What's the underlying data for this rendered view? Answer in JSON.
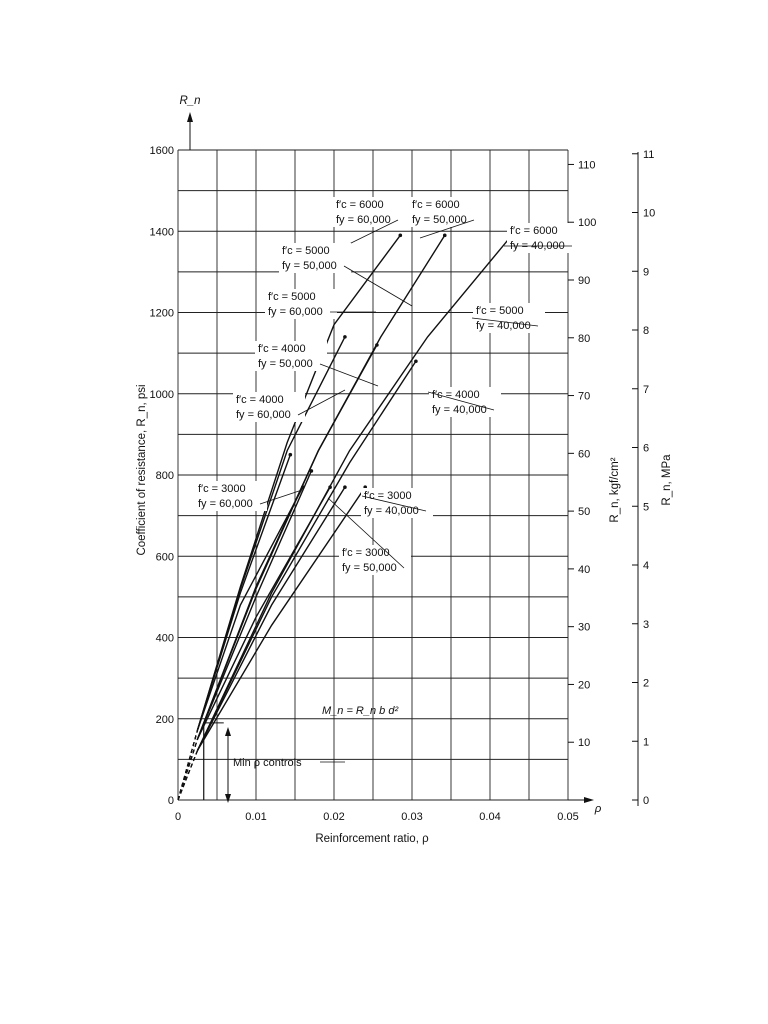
{
  "chart_data": {
    "type": "line",
    "title": "",
    "xlabel": "Reinforcement ratio, ρ",
    "x_axis_symbol": "ρ",
    "ylabel_left": "Coefficient of resistance, R_n, psi",
    "ylabel_left_symbol": "R_n",
    "ylabel_right_1": "R_n, kgf/cm²",
    "ylabel_right_2": "R_n, MPa",
    "xlim": [
      0,
      0.05
    ],
    "ylim": [
      0,
      1600
    ],
    "right1_lim": [
      0,
      112.5
    ],
    "right2_lim": [
      0,
      11.03
    ],
    "x_ticks": [
      "0",
      "0.01",
      "0.02",
      "0.03",
      "0.04",
      "0.05"
    ],
    "x_tick_values": [
      0,
      0.01,
      0.02,
      0.03,
      0.04,
      0.05
    ],
    "y_ticks": [
      "0",
      "200",
      "400",
      "600",
      "800",
      "1000",
      "1200",
      "1400",
      "1600"
    ],
    "y_tick_values": [
      0,
      200,
      400,
      600,
      800,
      1000,
      1200,
      1400,
      1600
    ],
    "right1_ticks": [
      "10",
      "20",
      "30",
      "40",
      "50",
      "60",
      "70",
      "80",
      "90",
      "100",
      "110"
    ],
    "right1_tick_values": [
      10,
      20,
      30,
      40,
      50,
      60,
      70,
      80,
      90,
      100,
      110
    ],
    "right2_ticks": [
      "0",
      "1",
      "2",
      "3",
      "4",
      "5",
      "6",
      "7",
      "8",
      "9",
      "10",
      "11"
    ],
    "right2_tick_values": [
      0,
      1,
      2,
      3,
      4,
      5,
      6,
      7,
      8,
      9,
      10,
      11
    ],
    "grid": true,
    "series": [
      {
        "fc": "6000",
        "fy": "60,000",
        "x": [
          0.0025,
          0.008,
          0.014,
          0.02,
          0.0285
        ],
        "y": [
          172,
          525,
          880,
          1170,
          1390
        ]
      },
      {
        "fc": "6000",
        "fy": "50,000",
        "x": [
          0.0025,
          0.01,
          0.018,
          0.026,
          0.0342
        ],
        "y": [
          150,
          525,
          860,
          1140,
          1390
        ]
      },
      {
        "fc": "6000",
        "fy": "40,000",
        "x": [
          0.0025,
          0.012,
          0.022,
          0.032,
          0.0428
        ],
        "y": [
          122,
          510,
          860,
          1140,
          1390
        ]
      },
      {
        "fc": "5000",
        "fy": "60,000",
        "x": [
          0.0025,
          0.008,
          0.014,
          0.0214
        ],
        "y": [
          172,
          520,
          860,
          1140
        ]
      },
      {
        "fc": "5000",
        "fy": "50,000",
        "x": [
          0.0025,
          0.01,
          0.018,
          0.0255
        ],
        "y": [
          150,
          520,
          860,
          1120
        ]
      },
      {
        "fc": "5000",
        "fy": "40,000",
        "x": [
          0.0025,
          0.012,
          0.022,
          0.0305
        ],
        "y": [
          122,
          500,
          830,
          1080
        ]
      },
      {
        "fc": "4000",
        "fy": "60,000",
        "x": [
          0.0025,
          0.008,
          0.0144
        ],
        "y": [
          172,
          510,
          850
        ]
      },
      {
        "fc": "4000",
        "fy": "50,000",
        "x": [
          0.0025,
          0.01,
          0.0171
        ],
        "y": [
          150,
          500,
          810
        ]
      },
      {
        "fc": "4000",
        "fy": "40,000",
        "x": [
          0.0025,
          0.012,
          0.0214
        ],
        "y": [
          122,
          480,
          770
        ]
      },
      {
        "fc": "3000",
        "fy": "60,000",
        "x": [
          0.0025,
          0.008,
          0.016
        ],
        "y": [
          172,
          480,
          770
        ]
      },
      {
        "fc": "3000",
        "fy": "50,000",
        "x": [
          0.0025,
          0.01,
          0.0195
        ],
        "y": [
          150,
          450,
          770
        ]
      },
      {
        "fc": "3000",
        "fy": "40,000",
        "x": [
          0.0025,
          0.012,
          0.024
        ],
        "y": [
          122,
          430,
          770
        ]
      }
    ],
    "annotations": [
      {
        "text_fc": "f′c = 6000",
        "text_fy": "fy = 60,000"
      },
      {
        "text_fc": "f′c = 6000",
        "text_fy": "fy = 50,000"
      },
      {
        "text_fc": "f′c = 6000",
        "text_fy": "fy = 40,000"
      },
      {
        "text_fc": "f′c = 5000",
        "text_fy": "fy = 50,000"
      },
      {
        "text_fc": "f′c = 5000",
        "text_fy": "fy = 60,000"
      },
      {
        "text_fc": "f′c = 5000",
        "text_fy": "fy = 40,000"
      },
      {
        "text_fc": "f′c = 4000",
        "text_fy": "fy = 50,000"
      },
      {
        "text_fc": "f′c = 4000",
        "text_fy": "fy = 60,000"
      },
      {
        "text_fc": "f′c = 4000",
        "text_fy": "fy = 40,000"
      },
      {
        "text_fc": "f′c = 3000",
        "text_fy": "fy = 60,000"
      },
      {
        "text_fc": "f′c = 3000",
        "text_fy": "fy = 40,000"
      },
      {
        "text_fc": "f′c = 3000",
        "text_fy": "fy = 50,000"
      }
    ],
    "formula": "M_n = R_n b d²",
    "min_rho_label": "Min ρ controls",
    "min_rho_value": 0.0033
  }
}
